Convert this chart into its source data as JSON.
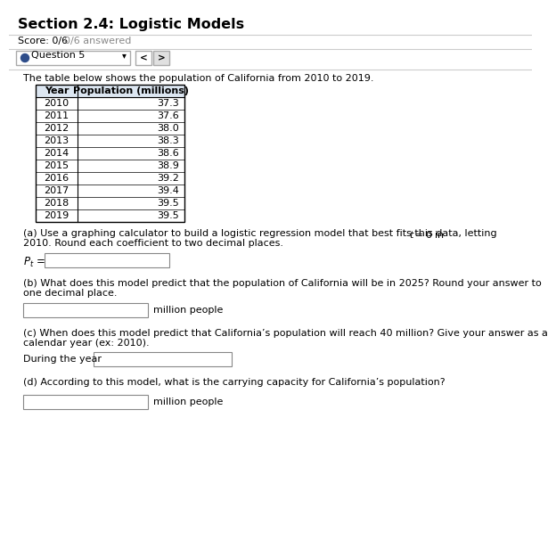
{
  "title": "Section 2.4: Logistic Models",
  "score_text": "Score: 0/6",
  "score_gray": "0/6 answered",
  "question_label": "Question 5",
  "intro_text": "The table below shows the population of California from 2010 to 2019.",
  "table_headers": [
    "Year",
    "Population (millions)"
  ],
  "table_data": [
    [
      "2010",
      "37.3"
    ],
    [
      "2011",
      "37.6"
    ],
    [
      "2012",
      "38.0"
    ],
    [
      "2013",
      "38.3"
    ],
    [
      "2014",
      "38.6"
    ],
    [
      "2015",
      "38.9"
    ],
    [
      "2016",
      "39.2"
    ],
    [
      "2017",
      "39.4"
    ],
    [
      "2018",
      "39.5"
    ],
    [
      "2019",
      "39.5"
    ]
  ],
  "part_a_line1": "(a) Use a graphing calculator to build a logistic regression model that best fits this data, letting",
  "part_a_t0": "t = 0 in",
  "part_a_line2": "2010. Round each coefficient to two decimal places.",
  "part_b_line1": "(b) What does this model predict that the population of California will be in 2025? Round your answer to",
  "part_b_line2": "one decimal place.",
  "part_b_suffix": "million people",
  "part_c_line1": "(c) When does this model predict that California’s population will reach 40 million? Give your answer as a",
  "part_c_line2": "calendar year (ex: 2010).",
  "part_c_label": "During the year",
  "part_d_text": "(d) According to this model, what is the carrying capacity for California’s population?",
  "part_d_suffix": "million people",
  "bg_color": "#ffffff",
  "header_bg": "#dce6f1",
  "border_color": "#000000",
  "dot_color": "#2e4d8a",
  "gray_text": "#888888",
  "nav_btn_bg": "#e0e0e0",
  "nav_btn_active": "#2e4d8a"
}
